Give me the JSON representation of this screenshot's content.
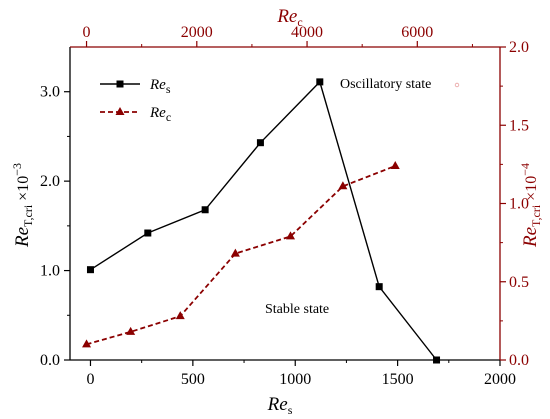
{
  "chart_data": {
    "type": "line",
    "axes": {
      "bottom": {
        "label_main": "Re",
        "label_sub": "s",
        "range": [
          -100,
          2000
        ],
        "ticks": [
          "0",
          "500",
          "1000",
          "1500",
          "2000"
        ],
        "tick_values": [
          0,
          500,
          1000,
          1500,
          2000
        ]
      },
      "top": {
        "label_main": "Re",
        "label_sub": "c",
        "range": [
          -300,
          7500
        ],
        "ticks": [
          "0",
          "2000",
          "4000",
          "6000"
        ],
        "tick_values": [
          0,
          2000,
          4000,
          6000
        ]
      },
      "left": {
        "label_main": "Re",
        "label_sub": "T,cri",
        "label_suffix": " ×10",
        "label_exp": "−3",
        "range": [
          0,
          3.5
        ],
        "ticks": [
          "0.0",
          "1.0",
          "2.0",
          "3.0"
        ],
        "tick_values": [
          0,
          1,
          2,
          3
        ]
      },
      "right": {
        "label_main": "Re",
        "label_sub": "T,cri",
        "label_suffix": " ×10",
        "label_exp": "−4",
        "range": [
          0,
          2.0
        ],
        "ticks": [
          "0.0",
          "0.5",
          "1.0",
          "1.5",
          "2.0"
        ],
        "tick_values": [
          0,
          0.5,
          1.0,
          1.5,
          2.0
        ]
      }
    },
    "series": [
      {
        "name_main": "Re",
        "name_sub": "s",
        "axes": "bottom-left",
        "color": "#000000",
        "marker": "square",
        "line": "solid",
        "x": [
          0,
          280,
          560,
          830,
          1120,
          1410,
          1690
        ],
        "y": [
          1.01,
          1.42,
          1.68,
          2.43,
          3.11,
          0.82,
          0.0
        ]
      },
      {
        "name_main": "Re",
        "name_sub": "c",
        "axes": "top-right",
        "color": "#8b0000",
        "marker": "triangle",
        "line": "dashed",
        "x": [
          0,
          800,
          1700,
          2700,
          3700,
          4650,
          5600
        ],
        "y": [
          0.1,
          0.18,
          0.28,
          0.68,
          0.79,
          1.11,
          1.24
        ]
      }
    ],
    "annotations": [
      {
        "text": "Oscillatory state",
        "x": 1250,
        "y": 3.15
      },
      {
        "text": "Stable state",
        "x": 830,
        "y": 0.55
      }
    ],
    "legend": "top-left",
    "grid": false
  }
}
